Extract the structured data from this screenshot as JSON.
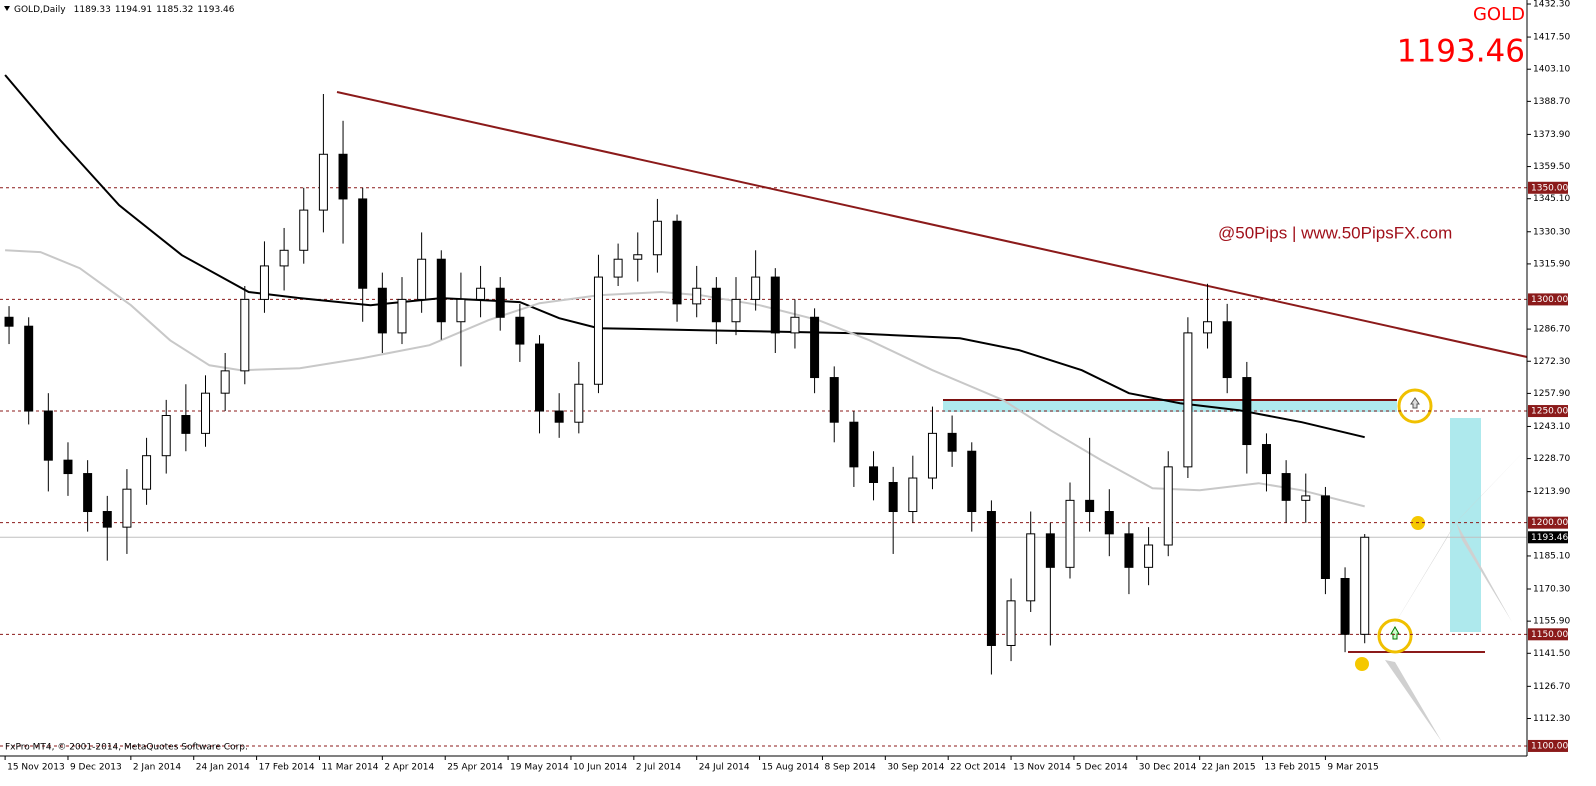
{
  "chart_data": {
    "type": "candlestick",
    "symbol": "GOLD",
    "header": "GOLD,Daily",
    "header_ohlc": [
      1189.33,
      1194.91,
      1185.32,
      1193.46
    ],
    "watermark": "@50Pips | www.50PipsFX.com",
    "copyright": "FxPro MT4, © 2001-2014, MetaQuotes Software Corp.",
    "last_price": {
      "value": 1193.46,
      "label": "1193.46"
    },
    "up_color": "#ffffff",
    "down_color": "#000000",
    "x": [
      1,
      6,
      11,
      16,
      21,
      26,
      31,
      36,
      41,
      46,
      51,
      56,
      61,
      66,
      71,
      76,
      81,
      86,
      91,
      96,
      101,
      106,
      111,
      116,
      121,
      126,
      131,
      136,
      141,
      146,
      151,
      156,
      161,
      166,
      171,
      176,
      181,
      186,
      191,
      196,
      201,
      206,
      211,
      216,
      221,
      226,
      231,
      236,
      241,
      246,
      251,
      256,
      261,
      266,
      271,
      276,
      281,
      286,
      291,
      296,
      301,
      306,
      311,
      316,
      321,
      326,
      331,
      336,
      341,
      346
    ],
    "open": [
      1292,
      1288,
      1250,
      1228,
      1222,
      1205,
      1198,
      1215,
      1230,
      1248,
      1240,
      1258,
      1268,
      1300,
      1315,
      1322,
      1340,
      1365,
      1345,
      1305,
      1285,
      1300,
      1318,
      1290,
      1300,
      1305,
      1292,
      1280,
      1250,
      1245,
      1262,
      1310,
      1318,
      1320,
      1335,
      1298,
      1305,
      1290,
      1300,
      1310,
      1285,
      1292,
      1265,
      1245,
      1225,
      1218,
      1205,
      1220,
      1240,
      1232,
      1205,
      1145,
      1165,
      1195,
      1180,
      1210,
      1205,
      1195,
      1180,
      1190,
      1225,
      1285,
      1290,
      1265,
      1235,
      1222,
      1210,
      1212,
      1175,
      1150
    ],
    "high": [
      1297,
      1292,
      1258,
      1236,
      1228,
      1212,
      1224,
      1238,
      1255,
      1262,
      1266,
      1276,
      1306,
      1326,
      1332,
      1350,
      1392,
      1380,
      1350,
      1312,
      1310,
      1330,
      1322,
      1312,
      1315,
      1310,
      1298,
      1284,
      1258,
      1272,
      1320,
      1325,
      1330,
      1345,
      1338,
      1315,
      1310,
      1310,
      1322,
      1314,
      1300,
      1296,
      1270,
      1250,
      1232,
      1225,
      1230,
      1252,
      1248,
      1236,
      1210,
      1175,
      1205,
      1200,
      1218,
      1238,
      1215,
      1200,
      1198,
      1232,
      1292,
      1307,
      1298,
      1272,
      1240,
      1228,
      1222,
      1216,
      1180,
      1194.91
    ],
    "low": [
      1280,
      1244,
      1214,
      1212,
      1196,
      1183,
      1186,
      1208,
      1222,
      1232,
      1234,
      1250,
      1262,
      1294,
      1304,
      1316,
      1330,
      1325,
      1290,
      1276,
      1280,
      1294,
      1282,
      1270,
      1292,
      1286,
      1272,
      1240,
      1238,
      1240,
      1258,
      1306,
      1308,
      1312,
      1290,
      1292,
      1280,
      1284,
      1295,
      1276,
      1278,
      1258,
      1236,
      1216,
      1210,
      1186,
      1200,
      1215,
      1225,
      1196,
      1132,
      1138,
      1160,
      1145,
      1175,
      1196,
      1185,
      1168,
      1172,
      1185,
      1220,
      1278,
      1258,
      1222,
      1214,
      1200,
      1200,
      1168,
      1142,
      1146
    ],
    "close": [
      1288,
      1250,
      1228,
      1222,
      1205,
      1198,
      1215,
      1230,
      1248,
      1240,
      1258,
      1268,
      1300,
      1315,
      1322,
      1340,
      1365,
      1345,
      1305,
      1285,
      1300,
      1318,
      1290,
      1300,
      1305,
      1292,
      1280,
      1250,
      1245,
      1262,
      1310,
      1318,
      1320,
      1335,
      1298,
      1305,
      1290,
      1300,
      1310,
      1285,
      1292,
      1265,
      1245,
      1225,
      1218,
      1205,
      1220,
      1240,
      1232,
      1205,
      1145,
      1165,
      1195,
      1180,
      1210,
      1205,
      1195,
      1180,
      1190,
      1225,
      1285,
      1290,
      1265,
      1235,
      1222,
      1210,
      1212,
      1175,
      1150,
      1193.46
    ],
    "ma_lines": [
      {
        "color": "#000000",
        "x": [
          0,
          14,
          29,
          45,
          62,
          75,
          93,
          111,
          131,
          141,
          151,
          177,
          215,
          243,
          258,
          274,
          286,
          299,
          314,
          330,
          346
        ],
        "values": [
          1400.5,
          1371.4,
          1342.2,
          1319.8,
          1303.3,
          1300.6,
          1297.4,
          1300.6,
          1298.8,
          1291.6,
          1287.1,
          1286.2,
          1284.9,
          1282.6,
          1277.3,
          1268.3,
          1258.0,
          1253.5,
          1250.4,
          1245.0,
          1238.3
        ]
      },
      {
        "color": "#c8c8c8",
        "x": [
          0,
          9,
          19,
          32,
          42,
          52,
          60,
          75,
          91,
          108,
          123,
          136,
          151,
          167,
          177,
          192,
          207,
          220,
          236,
          254,
          266,
          279,
          292,
          304,
          319,
          330,
          346
        ],
        "values": [
          1322.0,
          1321.2,
          1314.0,
          1297.4,
          1281.7,
          1270.5,
          1268.3,
          1269.2,
          1273.7,
          1279.5,
          1290.7,
          1298.3,
          1301.9,
          1303.3,
          1301.9,
          1297.4,
          1290.7,
          1281.7,
          1268.3,
          1254.9,
          1241.4,
          1228.0,
          1215.4,
          1214.5,
          1217.7,
          1214.5,
          1207.3
        ]
      }
    ],
    "levels": [
      {
        "value": 1350,
        "label": "1350.00"
      },
      {
        "value": 1300,
        "label": "1300.00"
      },
      {
        "value": 1250,
        "label": "1250.00"
      },
      {
        "value": 1200,
        "label": "1200.00"
      },
      {
        "value": 1150,
        "label": "1150.00"
      },
      {
        "value": 1100,
        "label": "1100.00"
      }
    ],
    "level_color": "#8b1a1a",
    "xlim": [
      -1.3,
      387.3
    ],
    "ylim": [
      1095.5,
      1434.1
    ],
    "yticks": [
      {
        "value": 1432.3,
        "label": "1432.30"
      },
      {
        "value": 1417.5,
        "label": "1417.50"
      },
      {
        "value": 1403.1,
        "label": "1403.10"
      },
      {
        "value": 1388.7,
        "label": "1388.70"
      },
      {
        "value": 1373.9,
        "label": "1373.90"
      },
      {
        "value": 1359.5,
        "label": "1359.50"
      },
      {
        "value": 1345.1,
        "label": "1345.10"
      },
      {
        "value": 1330.3,
        "label": "1330.30"
      },
      {
        "value": 1315.9,
        "label": "1315.90"
      },
      {
        "value": 1286.7,
        "label": "1286.70"
      },
      {
        "value": 1272.3,
        "label": "1272.30"
      },
      {
        "value": 1257.9,
        "label": "1257.90"
      },
      {
        "value": 1243.1,
        "label": "1243.10"
      },
      {
        "value": 1228.7,
        "label": "1228.70"
      },
      {
        "value": 1213.9,
        "label": "1213.90"
      },
      {
        "value": 1185.1,
        "label": "1185.10"
      },
      {
        "value": 1170.3,
        "label": "1170.30"
      },
      {
        "value": 1155.9,
        "label": "1155.90"
      },
      {
        "value": 1141.5,
        "label": "1141.50"
      },
      {
        "value": 1126.7,
        "label": "1126.70"
      },
      {
        "value": 1112.3,
        "label": "1112.30"
      }
    ],
    "xticks": [
      {
        "value": 0,
        "label": "15 Nov 2013"
      },
      {
        "value": 16,
        "label": "9 Dec 2013"
      },
      {
        "value": 32,
        "label": "2 Jan 2014"
      },
      {
        "value": 48,
        "label": "24 Jan 2014"
      },
      {
        "value": 64,
        "label": "17 Feb 2014"
      },
      {
        "value": 80,
        "label": "11 Mar 2014"
      },
      {
        "value": 96,
        "label": "2 Apr 2014"
      },
      {
        "value": 112,
        "label": "25 Apr 2014"
      },
      {
        "value": 128,
        "label": "19 May 2014"
      },
      {
        "value": 144,
        "label": "10 Jun 2014"
      },
      {
        "value": 160,
        "label": "2 Jul 2014"
      },
      {
        "value": 176,
        "label": "24 Jul 2014"
      },
      {
        "value": 192,
        "label": "15 Aug 2014"
      },
      {
        "value": 208,
        "label": "8 Sep 2014"
      },
      {
        "value": 224,
        "label": "30 Sep 2014"
      },
      {
        "value": 240,
        "label": "22 Oct 2014"
      },
      {
        "value": 256,
        "label": "13 Nov 2014"
      },
      {
        "value": 272,
        "label": "5 Dec 2014"
      },
      {
        "value": 288,
        "label": "30 Dec 2014"
      },
      {
        "value": 304,
        "label": "22 Jan 2015"
      },
      {
        "value": 320,
        "label": "13 Feb 2015"
      },
      {
        "value": 336,
        "label": "9 Mar 2015"
      }
    ]
  }
}
